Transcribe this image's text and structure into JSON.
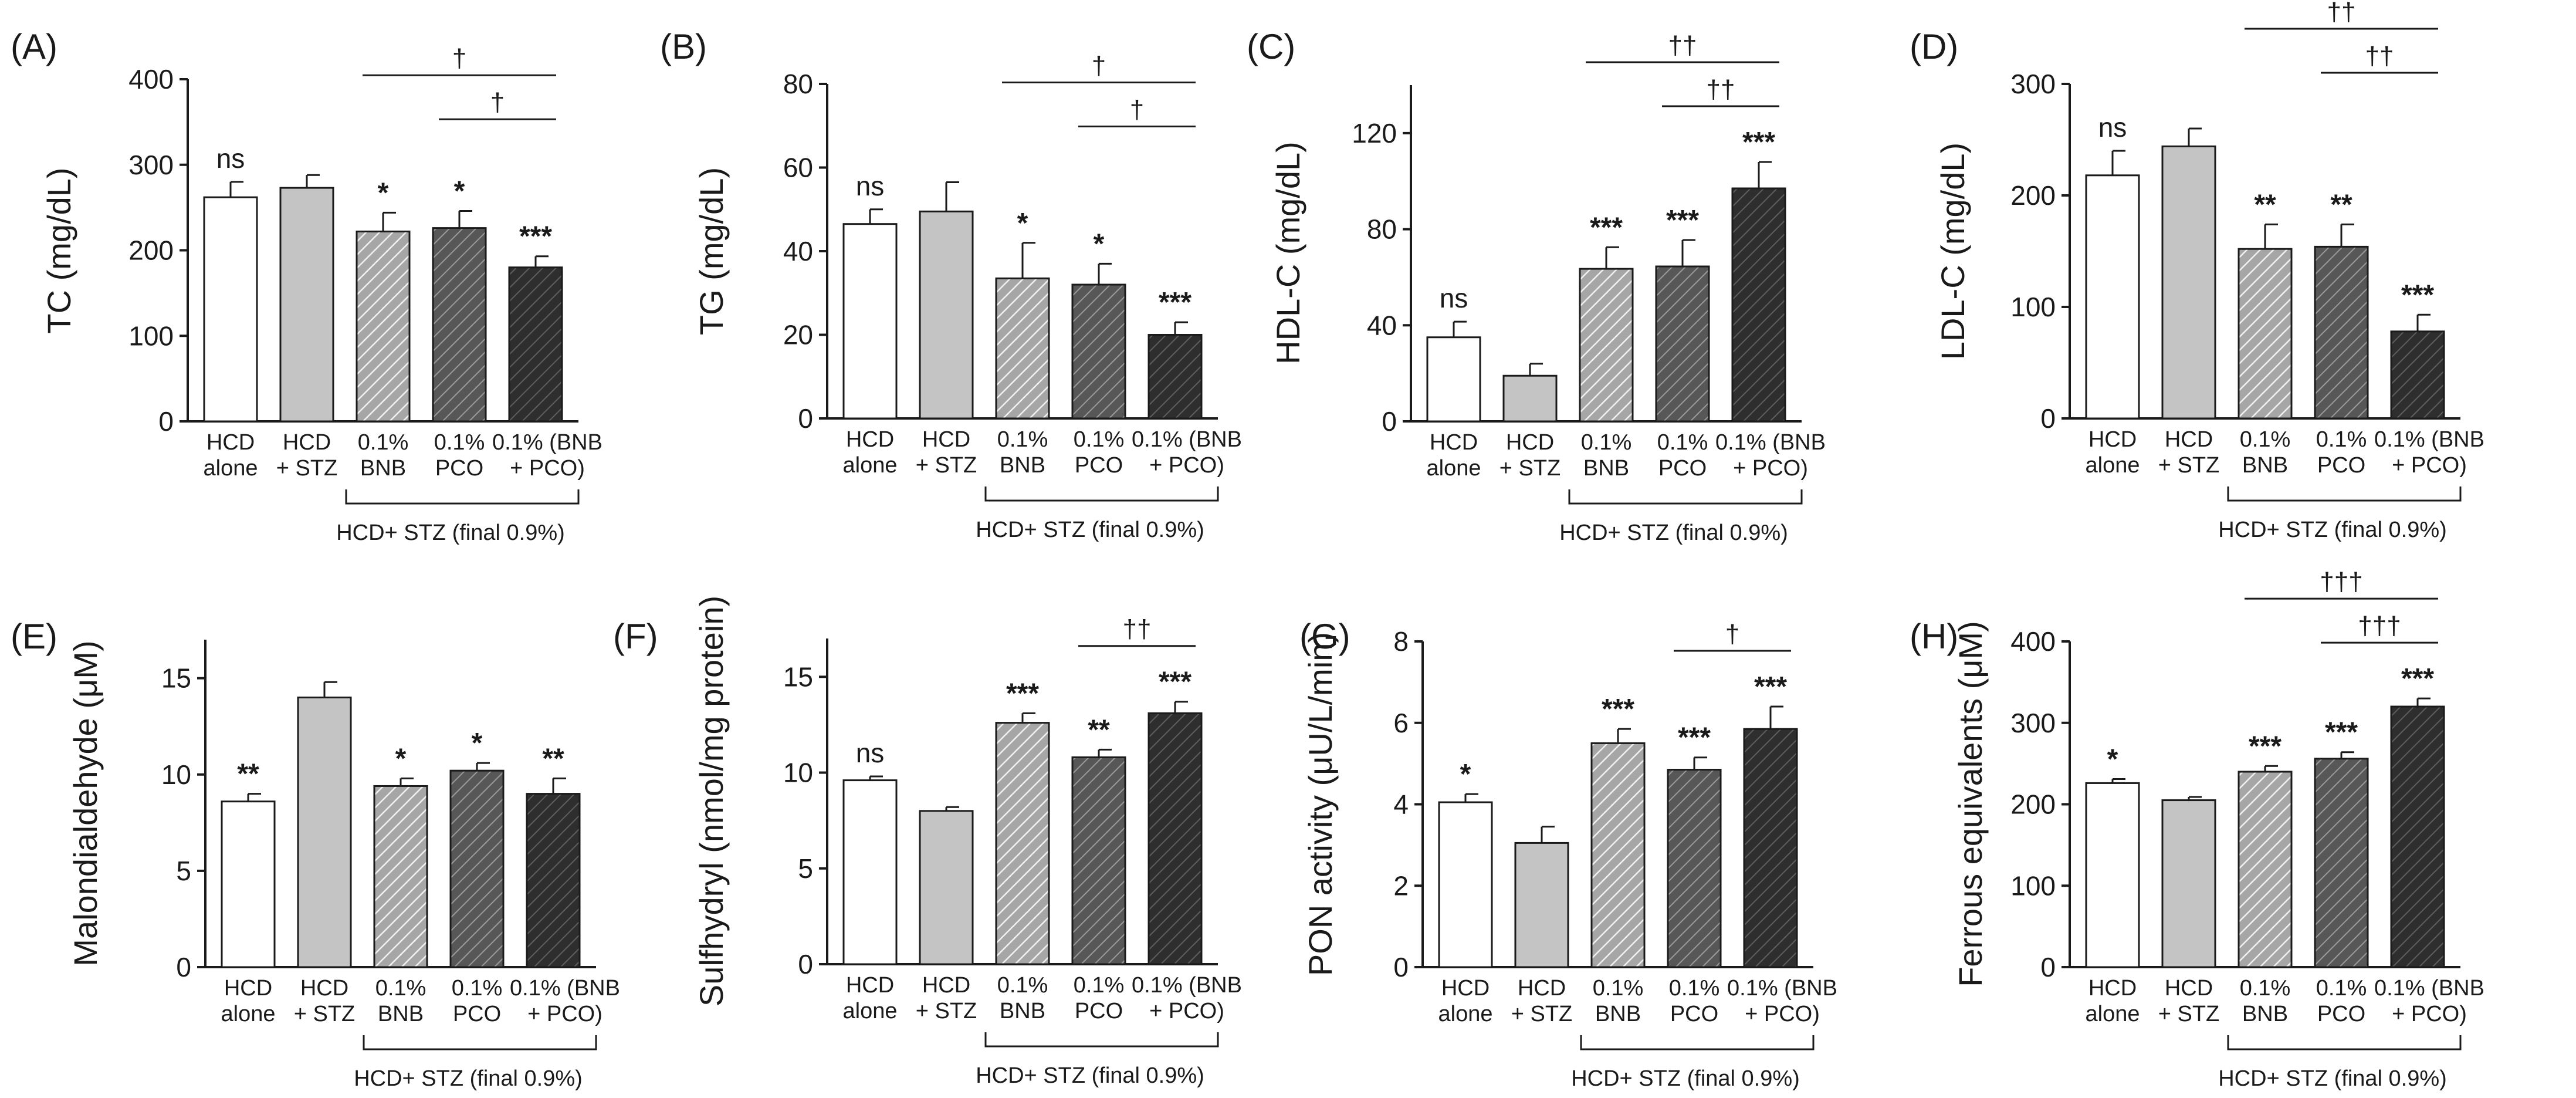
{
  "group_label": "HCD+ STZ (final 0.9%)",
  "categories": [
    [
      "HCD",
      "alone"
    ],
    [
      "HCD",
      "+ STZ"
    ],
    [
      "0.1%",
      "BNB"
    ],
    [
      "0.1%",
      "PCO"
    ],
    [
      "0.1% (BNB",
      "+ PCO)"
    ]
  ],
  "series_fills": [
    "#ffffff",
    "#c4c4c4",
    "hatch-light",
    "hatch-dark",
    "hatch-darkest"
  ],
  "colors": {
    "axis": "#1a1a1a",
    "light_gray": "#c4c4c4",
    "hatch_light_bg": "#a6a6a6",
    "hatch_dark_bg": "#575757",
    "hatch_darkest_bg": "#2e2e2e"
  },
  "chart_data": [
    {
      "type": "bar",
      "panel": "(A)",
      "ylabel": "TC (mg/dL)",
      "ylim": [
        0,
        400
      ],
      "yticks": [
        0,
        100,
        200,
        300,
        400
      ],
      "ytick_labels": [
        "0",
        "100",
        "200",
        "300",
        "400"
      ],
      "categories": [
        "HCD alone",
        "HCD + STZ",
        "0.1% BNB",
        "0.1% PCO",
        "0.1% (BNB + PCO)"
      ],
      "values": [
        262,
        273,
        222,
        226,
        180
      ],
      "errors": [
        18,
        15,
        22,
        20,
        13
      ],
      "sig": [
        "ns",
        "",
        "*",
        "*",
        "***"
      ],
      "brackets": [
        {
          "from": 2,
          "to": 4,
          "label": "†"
        },
        {
          "from": 3,
          "to": 4,
          "label": "†"
        }
      ]
    },
    {
      "type": "bar",
      "panel": "(B)",
      "ylabel": "TG (mg/dL)",
      "ylim": [
        0,
        80
      ],
      "yticks": [
        0,
        20,
        40,
        60,
        80
      ],
      "ytick_labels": [
        "0",
        "20",
        "40",
        "60",
        "80"
      ],
      "categories": [
        "HCD alone",
        "HCD + STZ",
        "0.1% BNB",
        "0.1% PCO",
        "0.1% (BNB + PCO)"
      ],
      "values": [
        46.5,
        49.5,
        33.5,
        32,
        20
      ],
      "errors": [
        3.5,
        7,
        8.5,
        5,
        3
      ],
      "sig": [
        "ns",
        "",
        "*",
        "*",
        "***"
      ],
      "brackets": [
        {
          "from": 2,
          "to": 4,
          "label": "†"
        },
        {
          "from": 3,
          "to": 4,
          "label": "†"
        }
      ]
    },
    {
      "type": "bar",
      "panel": "(C)",
      "ylabel": "HDL-C (mg/dL)",
      "ylim": [
        0,
        140
      ],
      "yticks": [
        0,
        40,
        80,
        120
      ],
      "ytick_labels": [
        "0",
        "40",
        "80",
        "120"
      ],
      "categories": [
        "HCD alone",
        "HCD + STZ",
        "0.1% BNB",
        "0.1% PCO",
        "0.1% (BNB + PCO)"
      ],
      "values": [
        35,
        19,
        63.5,
        64.5,
        97
      ],
      "errors": [
        6.5,
        5,
        9,
        11,
        11
      ],
      "sig": [
        "ns",
        "",
        "***",
        "***",
        "***"
      ],
      "brackets": [
        {
          "from": 2,
          "to": 4,
          "label": "††"
        },
        {
          "from": 3,
          "to": 4,
          "label": "††"
        }
      ]
    },
    {
      "type": "bar",
      "panel": "(D)",
      "ylabel": "LDL-C (mg/dL)",
      "ylim": [
        0,
        300
      ],
      "yticks": [
        0,
        100,
        200,
        300
      ],
      "ytick_labels": [
        "0",
        "100",
        "200",
        "300"
      ],
      "categories": [
        "HCD alone",
        "HCD + STZ",
        "0.1% BNB",
        "0.1% PCO",
        "0.1% (BNB + PCO)"
      ],
      "values": [
        218,
        244,
        152,
        154,
        78
      ],
      "errors": [
        22,
        16,
        22,
        20,
        15
      ],
      "sig": [
        "ns",
        "",
        "**",
        "**",
        "***"
      ],
      "brackets": [
        {
          "from": 2,
          "to": 4,
          "label": "††"
        },
        {
          "from": 3,
          "to": 4,
          "label": "††"
        }
      ]
    },
    {
      "type": "bar",
      "panel": "(E)",
      "ylabel": "Malondialdehyde (μM)",
      "ylim": [
        0,
        17
      ],
      "yticks": [
        0,
        5,
        10,
        15
      ],
      "ytick_labels": [
        "0",
        "5",
        "10",
        "15"
      ],
      "categories": [
        "HCD alone",
        "HCD + STZ",
        "0.1% BNB",
        "0.1% PCO",
        "0.1% (BNB + PCO)"
      ],
      "values": [
        8.6,
        14,
        9.4,
        10.2,
        9
      ],
      "errors": [
        0.4,
        0.8,
        0.4,
        0.4,
        0.8
      ],
      "sig": [
        "**",
        "",
        "*",
        "*",
        "**"
      ],
      "brackets": []
    },
    {
      "type": "bar",
      "panel": "(F)",
      "ylabel": "Sulfhydryl (nmol/mg protein)",
      "ylim": [
        0,
        17
      ],
      "yticks": [
        0,
        5,
        10,
        15
      ],
      "ytick_labels": [
        "0",
        "5",
        "10",
        "15"
      ],
      "categories": [
        "HCD alone",
        "HCD + STZ",
        "0.1% BNB",
        "0.1% PCO",
        "0.1% (BNB + PCO)"
      ],
      "values": [
        9.6,
        8,
        12.6,
        10.8,
        13.1
      ],
      "errors": [
        0.2,
        0.2,
        0.5,
        0.4,
        0.6
      ],
      "sig": [
        "ns",
        "",
        "***",
        "**",
        "***"
      ],
      "brackets": [
        {
          "from": 3,
          "to": 4,
          "label": "††"
        }
      ]
    },
    {
      "type": "bar",
      "panel": "(G)",
      "ylabel": "PON activity (μU/L/min)",
      "ylim": [
        0,
        8
      ],
      "yticks": [
        0,
        2,
        4,
        6,
        8
      ],
      "ytick_labels": [
        "0",
        "2",
        "4",
        "6",
        "8"
      ],
      "categories": [
        "HCD alone",
        "HCD + STZ",
        "0.1% BNB",
        "0.1% PCO",
        "0.1% (BNB + PCO)"
      ],
      "values": [
        4.05,
        3.05,
        5.5,
        4.85,
        5.85
      ],
      "errors": [
        0.2,
        0.4,
        0.35,
        0.3,
        0.55
      ],
      "sig": [
        "*",
        "",
        "***",
        "***",
        "***"
      ],
      "brackets": [
        {
          "from": 3,
          "to": 4,
          "label": "†"
        }
      ]
    },
    {
      "type": "bar",
      "panel": "(H)",
      "ylabel": "Ferrous equivalents (μM)",
      "ylim": [
        0,
        400
      ],
      "yticks": [
        0,
        100,
        200,
        300,
        400
      ],
      "ytick_labels": [
        "0",
        "100",
        "200",
        "300",
        "400"
      ],
      "categories": [
        "HCD alone",
        "HCD + STZ",
        "0.1% BNB",
        "0.1% PCO",
        "0.1% (BNB + PCO)"
      ],
      "values": [
        226,
        205,
        240,
        256,
        320
      ],
      "errors": [
        5,
        4,
        7,
        8,
        10
      ],
      "sig": [
        "*",
        "",
        "***",
        "***",
        "***"
      ],
      "brackets": [
        {
          "from": 2,
          "to": 4,
          "label": "†††"
        },
        {
          "from": 3,
          "to": 4,
          "label": "†††"
        }
      ]
    }
  ]
}
